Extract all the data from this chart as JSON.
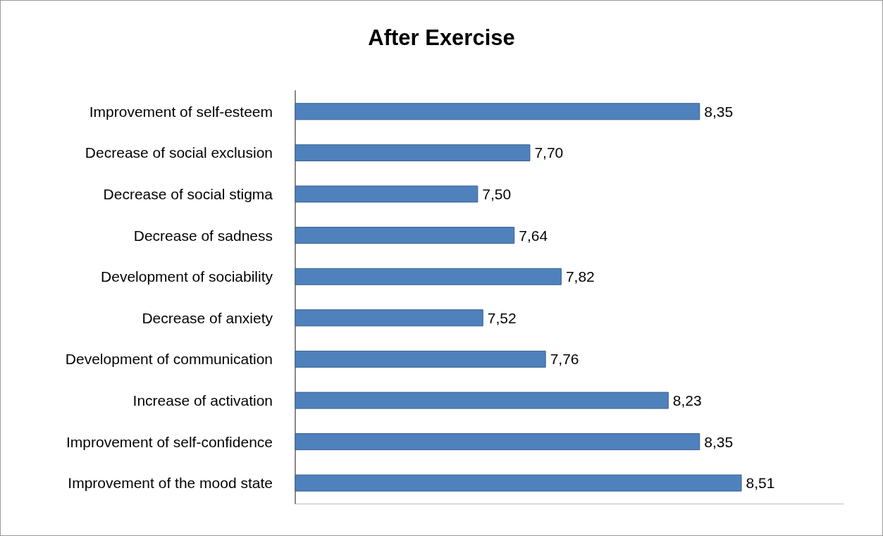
{
  "chart_data": {
    "type": "bar",
    "title": "After Exercise",
    "orientation": "horizontal",
    "categories": [
      "Improvement of self-esteem",
      "Decrease of social exclusion",
      "Decrease of social stigma",
      "Decrease of sadness",
      "Development of sociability",
      "Decrease of anxiety",
      "Development of communication",
      "Increase of activation",
      "Improvement of self-confidence",
      "Improvement of the mood state"
    ],
    "values": [
      8.35,
      7.7,
      7.5,
      7.64,
      7.82,
      7.52,
      7.76,
      8.23,
      8.35,
      8.51
    ],
    "value_labels": [
      "8,35",
      "7,70",
      "7,50",
      "7,64",
      "7,82",
      "7,52",
      "7,76",
      "8,23",
      "8,35",
      "8,51"
    ],
    "color": "#4f81bd",
    "xlim": [
      6.8,
      8.9
    ],
    "tick_labels": "y"
  }
}
